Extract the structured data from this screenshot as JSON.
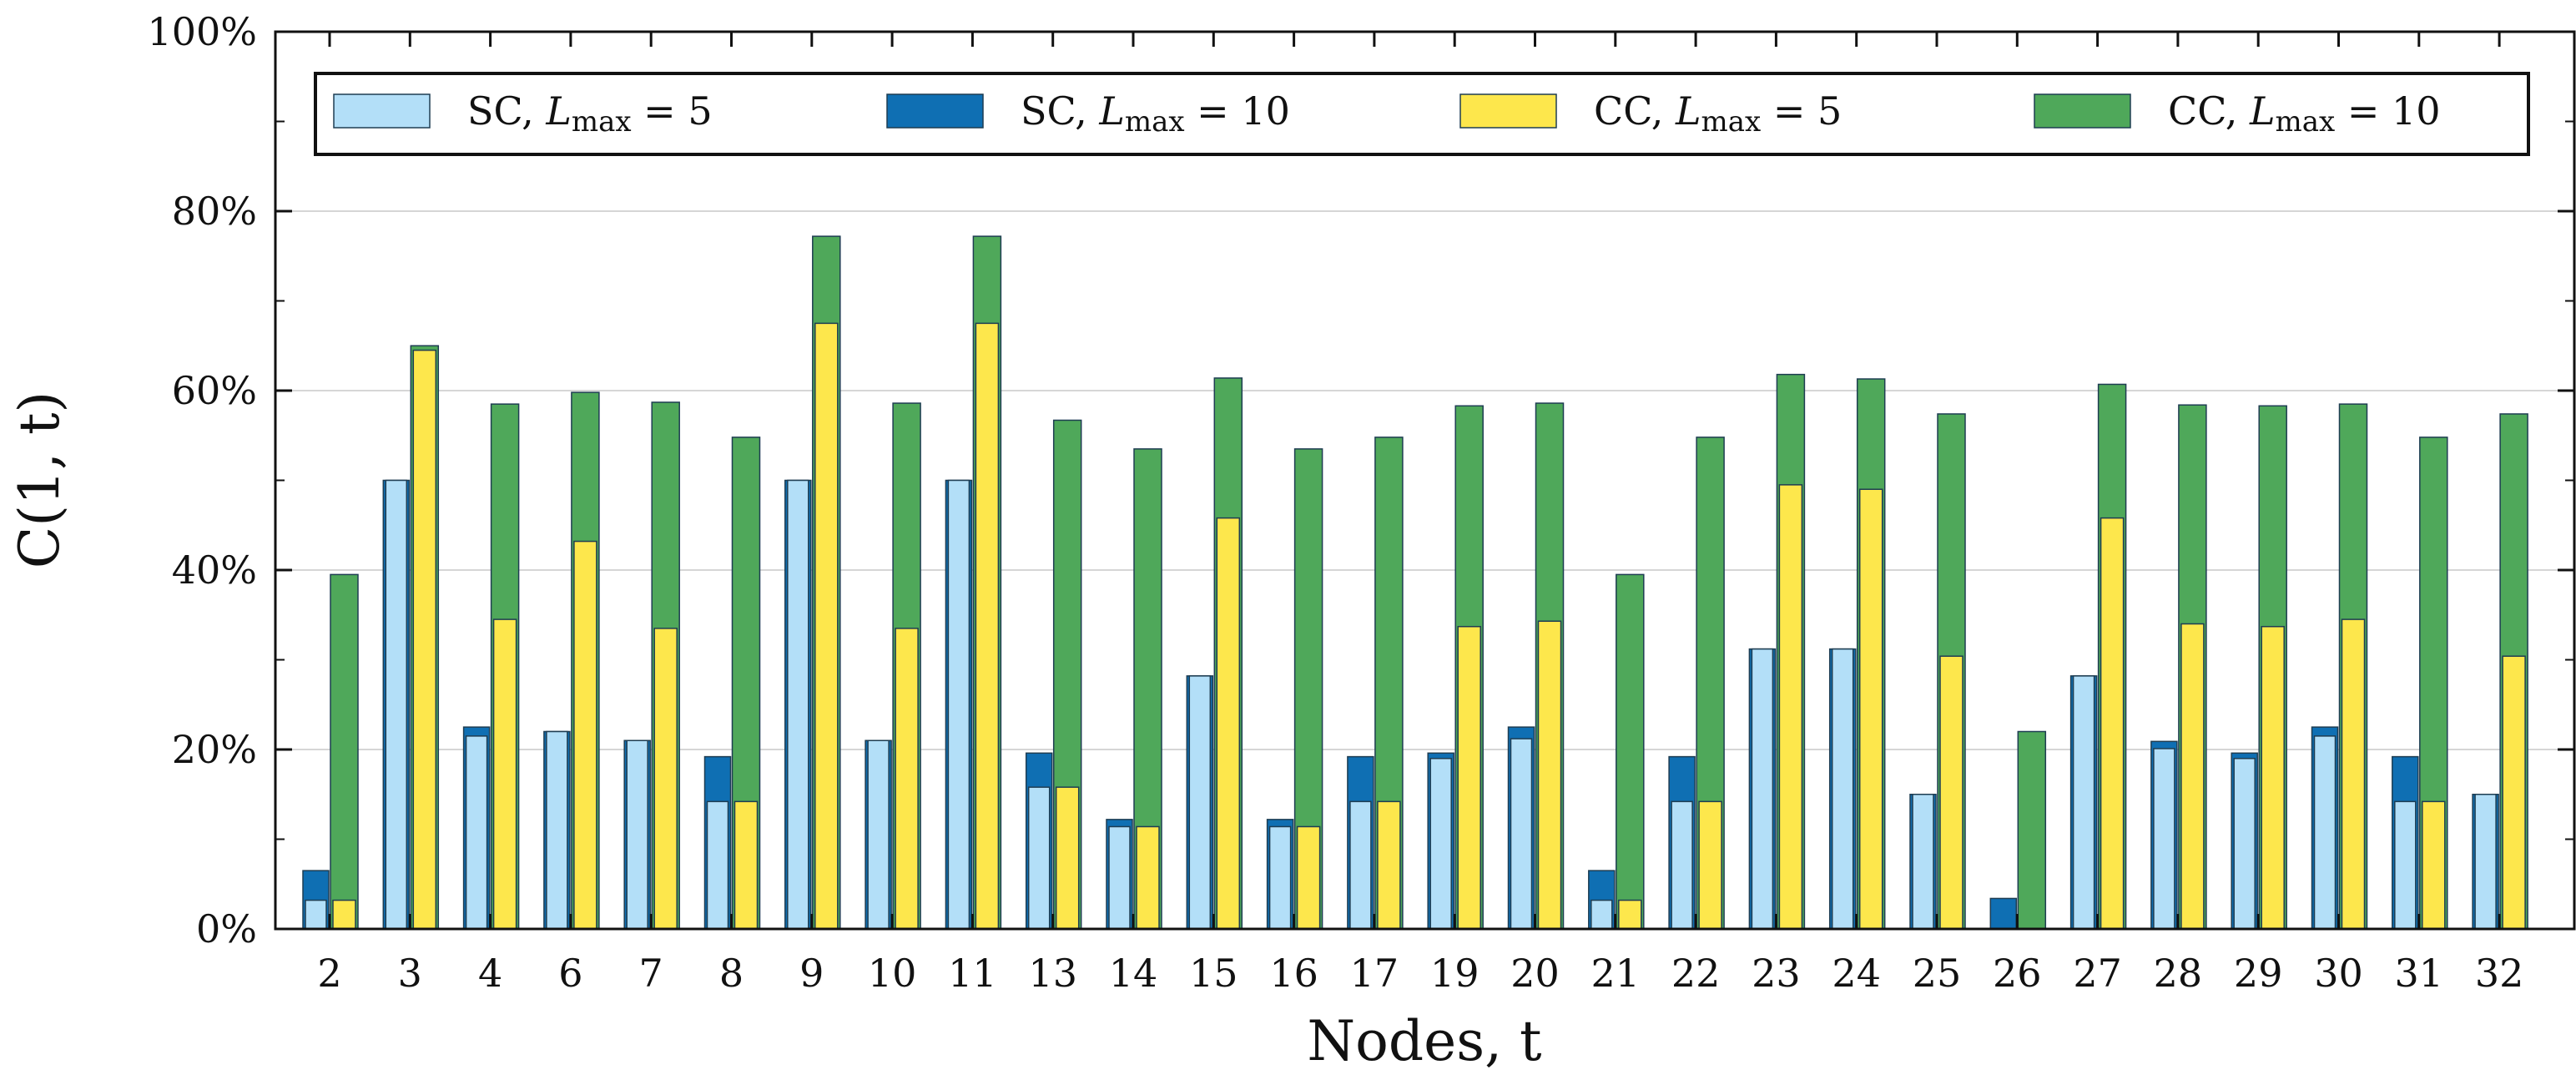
{
  "chart_data": {
    "type": "bar",
    "title": "",
    "xlabel": "Nodes, t",
    "ylabel": "C(1, t)",
    "ylim": [
      0,
      100
    ],
    "yticks": [
      "0%",
      "20%",
      "40%",
      "60%",
      "80%",
      "100%"
    ],
    "grid": true,
    "legend_position": "top",
    "categories": [
      "2",
      "3",
      "4",
      "6",
      "7",
      "8",
      "9",
      "10",
      "11",
      "13",
      "14",
      "15",
      "16",
      "17",
      "19",
      "20",
      "21",
      "22",
      "23",
      "24",
      "25",
      "26",
      "27",
      "28",
      "29",
      "30",
      "31",
      "32"
    ],
    "series": [
      {
        "name": "SC, L_max = 5",
        "label_prefix": "SC, ",
        "label_suffix": " = 5",
        "color": "#b3dff8",
        "values": [
          3.2,
          50,
          21.5,
          22,
          21,
          14.2,
          50,
          21,
          50,
          15.8,
          11.4,
          28.2,
          11.4,
          14.2,
          19,
          21.2,
          3.2,
          14.2,
          31.2,
          31.2,
          15,
          0,
          28.2,
          20.1,
          19,
          21.5,
          14.2,
          15
        ]
      },
      {
        "name": "SC, L_max = 10",
        "label_prefix": "SC, ",
        "label_suffix": " = 10",
        "color": "#0f6fb3",
        "values": [
          6.5,
          50,
          22.5,
          22,
          21,
          19.2,
          50,
          21,
          50,
          19.6,
          12.2,
          28.2,
          12.2,
          19.2,
          19.6,
          22.5,
          6.5,
          19.2,
          31.2,
          31.2,
          15,
          3.4,
          28.2,
          20.9,
          19.6,
          22.5,
          19.2,
          15
        ]
      },
      {
        "name": "CC, L_max = 5",
        "label_prefix": "CC, ",
        "label_suffix": " = 5",
        "color": "#fde74c",
        "values": [
          3.2,
          64.5,
          34.5,
          43.2,
          33.5,
          14.2,
          67.5,
          33.5,
          67.5,
          15.8,
          11.4,
          45.8,
          11.4,
          14.2,
          33.7,
          34.3,
          3.2,
          14.2,
          49.5,
          49,
          30.4,
          0,
          45.8,
          34,
          33.7,
          34.5,
          14.2,
          30.4
        ]
      },
      {
        "name": "CC, L_max = 10",
        "label_prefix": "CC, ",
        "label_suffix": " = 10",
        "color": "#4fa85a",
        "values": [
          39.5,
          65,
          58.5,
          59.8,
          58.7,
          54.8,
          77.2,
          58.6,
          77.2,
          56.7,
          53.5,
          61.4,
          53.5,
          54.8,
          58.3,
          58.6,
          39.5,
          54.8,
          61.8,
          61.3,
          57.4,
          22,
          60.7,
          58.4,
          58.3,
          58.5,
          54.8,
          57.4
        ]
      }
    ]
  }
}
